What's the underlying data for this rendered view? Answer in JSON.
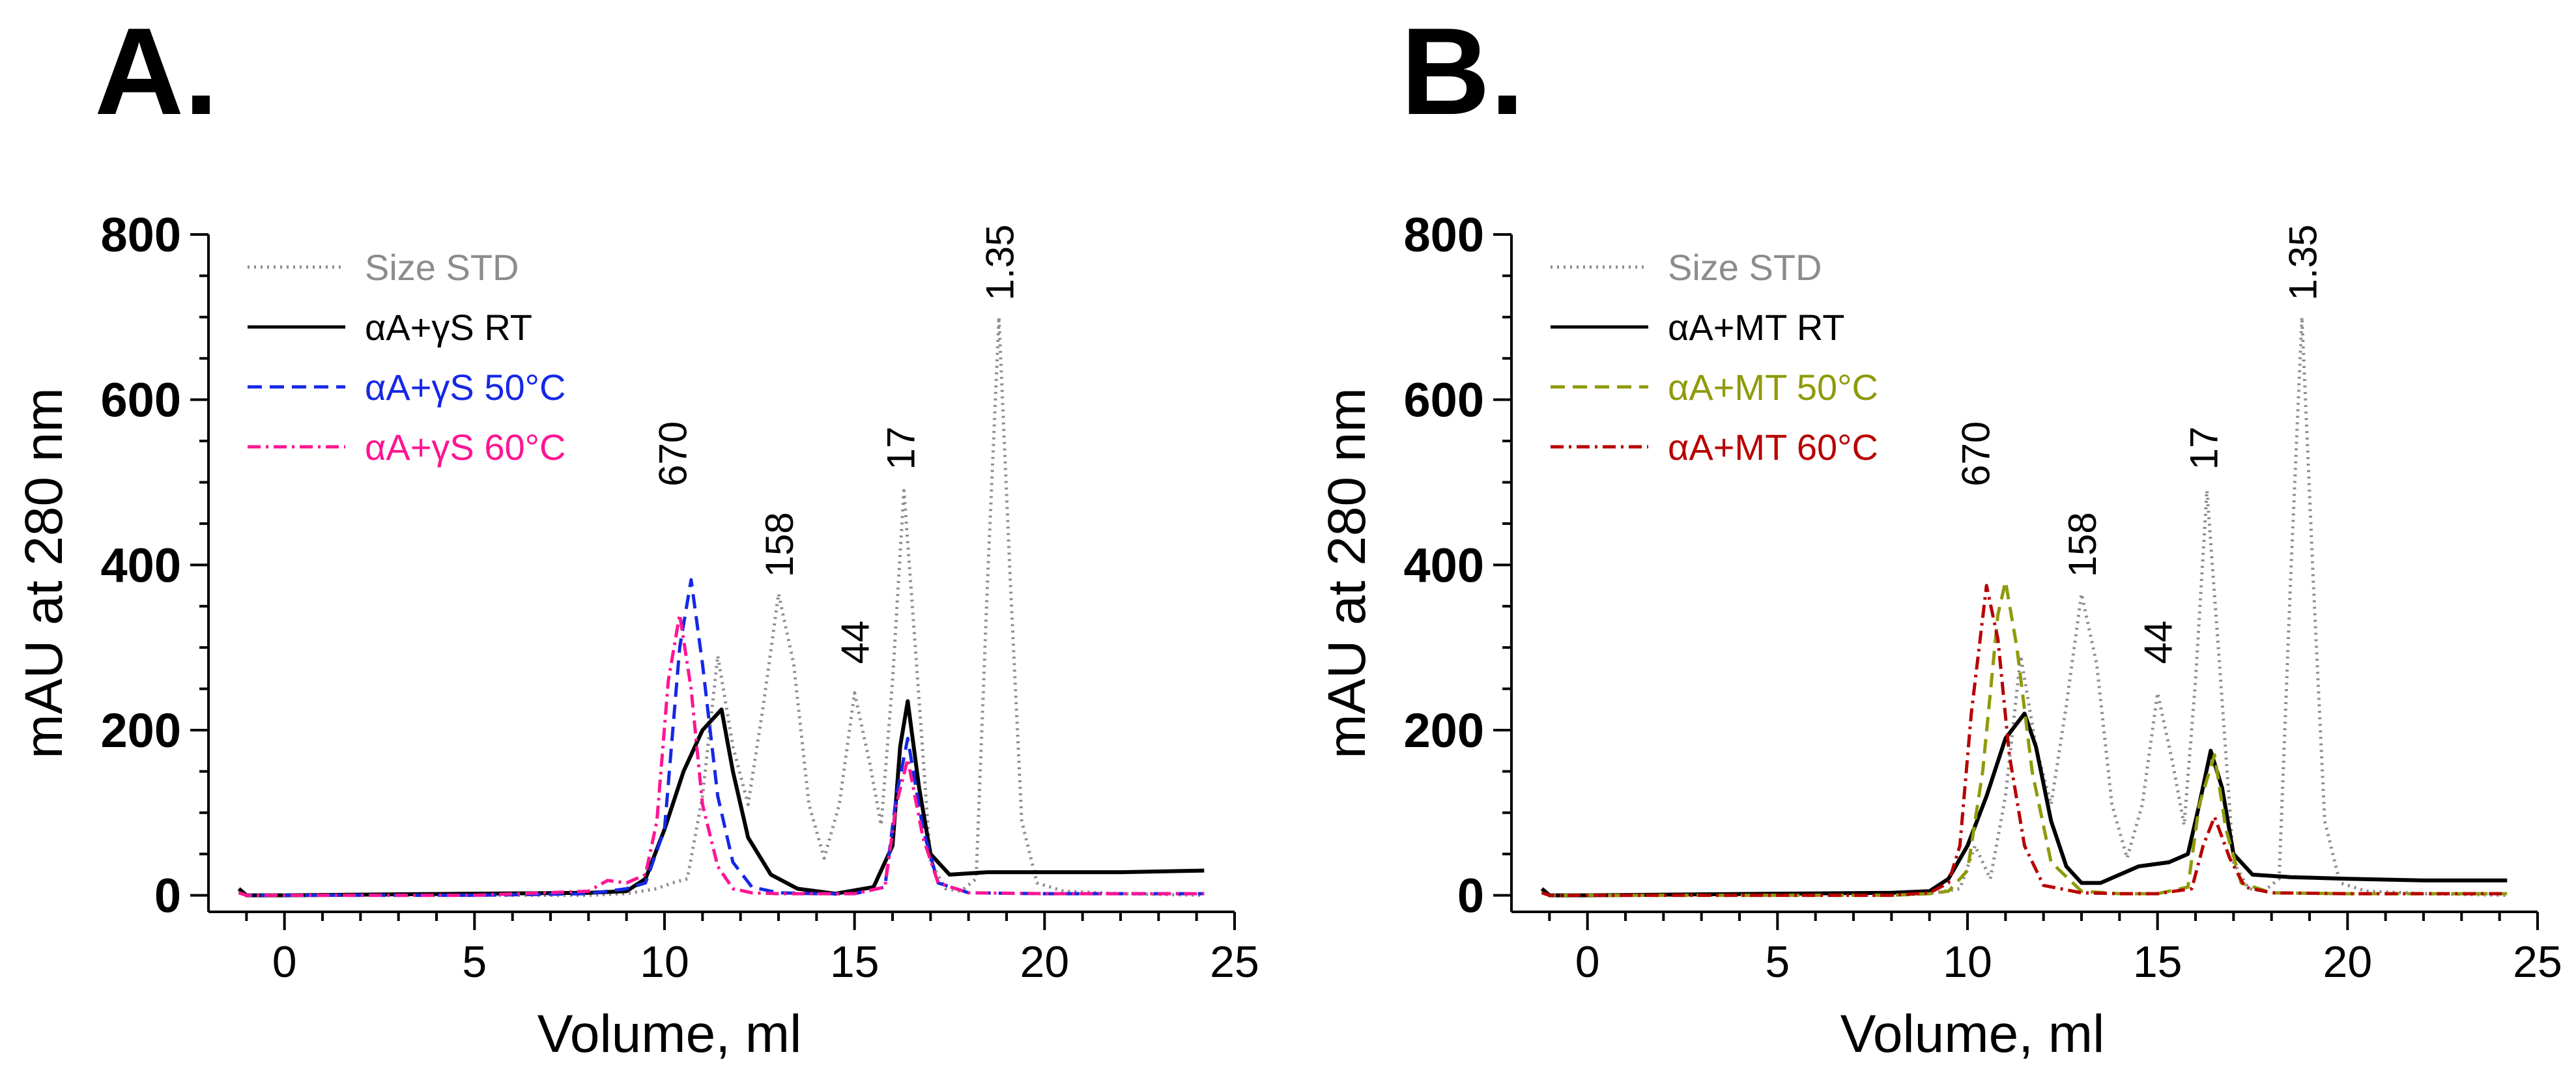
{
  "chart_data": [
    {
      "panel_label": "A.",
      "type": "line",
      "title": "",
      "xlabel": "Volume, ml",
      "ylabel": "mAU at 280 nm",
      "xlim": [
        -2,
        25
      ],
      "ylim": [
        -20,
        800
      ],
      "xticks": [
        0,
        5,
        10,
        15,
        20,
        25
      ],
      "xtick_labels": [
        "0",
        "5",
        "10",
        "15",
        "20",
        "25"
      ],
      "yticks": [
        0,
        200,
        400,
        600,
        800
      ],
      "ytick_labels": [
        "0",
        "200",
        "400",
        "600",
        "800"
      ],
      "legend_position": "top-left",
      "annotations": [
        {
          "text": "670",
          "x": 10.2,
          "y": 495
        },
        {
          "text": "158",
          "x": 13.0,
          "y": 385
        },
        {
          "text": "44",
          "x": 15.0,
          "y": 280
        },
        {
          "text": "17",
          "x": 16.2,
          "y": 515
        },
        {
          "text": "1.35",
          "x": 18.8,
          "y": 720
        }
      ],
      "series": [
        {
          "name": "Size STD",
          "color": "#8c8c8c",
          "dash": "dotted",
          "x": [
            -1.2,
            -1.0,
            0,
            5,
            8,
            9,
            9.8,
            10.2,
            10.6,
            11.0,
            11.4,
            11.8,
            12.2,
            12.6,
            13.0,
            13.4,
            13.8,
            14.2,
            14.6,
            15.0,
            15.4,
            15.7,
            16.0,
            16.3,
            16.6,
            17.0,
            17.4,
            17.8,
            18.2,
            18.5,
            18.8,
            19.1,
            19.4,
            19.8,
            20.5,
            22,
            24.2
          ],
          "y": [
            5,
            0,
            0,
            0,
            0,
            2,
            8,
            15,
            20,
            120,
            290,
            180,
            110,
            230,
            365,
            280,
            110,
            45,
            110,
            245,
            160,
            85,
            260,
            490,
            300,
            40,
            8,
            5,
            20,
            380,
            700,
            380,
            90,
            15,
            5,
            2,
            0
          ]
        },
        {
          "name": "αA+γS RT",
          "color": "#000000",
          "dash": "solid",
          "x": [
            -1.2,
            -1.0,
            0,
            5,
            8,
            9,
            9.5,
            10.0,
            10.5,
            11.0,
            11.5,
            11.8,
            12.2,
            12.8,
            13.5,
            14.5,
            15.5,
            16.0,
            16.2,
            16.4,
            16.7,
            17.0,
            17.5,
            18.5,
            20,
            22,
            24.2
          ],
          "y": [
            8,
            0,
            0,
            2,
            3,
            5,
            20,
            80,
            150,
            200,
            225,
            150,
            70,
            25,
            8,
            2,
            10,
            60,
            180,
            235,
            130,
            50,
            25,
            28,
            28,
            28,
            30
          ]
        },
        {
          "name": "αA+γS 50°C",
          "color": "#1528e6",
          "dash": "dashed",
          "x": [
            -1.2,
            -1.0,
            0,
            5,
            8,
            8.5,
            9.0,
            9.5,
            10.0,
            10.4,
            10.7,
            11.0,
            11.4,
            11.8,
            12.3,
            13,
            14,
            15,
            15.8,
            16.1,
            16.4,
            16.8,
            17.2,
            18,
            20,
            24.2
          ],
          "y": [
            3,
            0,
            0,
            0,
            2,
            5,
            8,
            15,
            80,
            300,
            382,
            280,
            120,
            40,
            10,
            3,
            2,
            2,
            10,
            120,
            190,
            80,
            15,
            3,
            2,
            2
          ]
        },
        {
          "name": "αA+γS 60°C",
          "color": "#ff1493",
          "dash": "dashdot",
          "x": [
            -1.2,
            -1.0,
            0,
            5,
            8,
            8.5,
            9.0,
            9.5,
            9.8,
            10.1,
            10.4,
            10.7,
            11.0,
            11.4,
            11.8,
            12.3,
            13,
            14,
            15,
            15.8,
            16.1,
            16.4,
            16.8,
            17.2,
            18,
            20,
            24.2
          ],
          "y": [
            3,
            0,
            0,
            0,
            5,
            18,
            15,
            25,
            90,
            260,
            340,
            250,
            110,
            35,
            8,
            3,
            2,
            2,
            2,
            10,
            110,
            165,
            70,
            15,
            3,
            2,
            2
          ]
        }
      ]
    },
    {
      "panel_label": "B.",
      "type": "line",
      "title": "",
      "xlabel": "Volume, ml",
      "ylabel": "mAU at 280 nm",
      "xlim": [
        -2,
        25
      ],
      "ylim": [
        -20,
        800
      ],
      "xticks": [
        0,
        5,
        10,
        15,
        20,
        25
      ],
      "xtick_labels": [
        "0",
        "5",
        "10",
        "15",
        "20",
        "25"
      ],
      "yticks": [
        0,
        200,
        400,
        600,
        800
      ],
      "ytick_labels": [
        "0",
        "200",
        "400",
        "600",
        "800"
      ],
      "legend_position": "top-left",
      "annotations": [
        {
          "text": "670",
          "x": 10.2,
          "y": 495
        },
        {
          "text": "158",
          "x": 13.0,
          "y": 385
        },
        {
          "text": "44",
          "x": 15.0,
          "y": 280
        },
        {
          "text": "17",
          "x": 16.2,
          "y": 515
        },
        {
          "text": "1.35",
          "x": 18.8,
          "y": 720
        }
      ],
      "series": [
        {
          "name": "Size STD",
          "color": "#8c8c8c",
          "dash": "dotted",
          "x": [
            -1.2,
            -1.0,
            0,
            5,
            8,
            9,
            9.8,
            10.2,
            10.6,
            11.0,
            11.4,
            11.8,
            12.2,
            12.6,
            13.0,
            13.4,
            13.8,
            14.2,
            14.6,
            15.0,
            15.4,
            15.7,
            16.0,
            16.3,
            16.6,
            17.0,
            17.4,
            17.8,
            18.2,
            18.5,
            18.8,
            19.1,
            19.4,
            19.8,
            20.5,
            22,
            24.2
          ],
          "y": [
            5,
            0,
            0,
            0,
            0,
            2,
            8,
            60,
            20,
            120,
            290,
            180,
            110,
            230,
            365,
            280,
            110,
            45,
            110,
            245,
            160,
            85,
            260,
            490,
            300,
            40,
            8,
            5,
            20,
            380,
            700,
            380,
            90,
            15,
            5,
            2,
            0
          ]
        },
        {
          "name": "αA+MT RT",
          "color": "#000000",
          "dash": "solid",
          "x": [
            -1.2,
            -1.0,
            0,
            5,
            8,
            9,
            9.5,
            10.0,
            10.5,
            11.0,
            11.5,
            11.8,
            12.2,
            12.6,
            13.0,
            13.5,
            14.5,
            15.3,
            15.8,
            16.1,
            16.4,
            16.7,
            17.0,
            17.5,
            18.5,
            20,
            22,
            24.2
          ],
          "y": [
            8,
            0,
            0,
            2,
            3,
            5,
            20,
            60,
            120,
            190,
            220,
            180,
            90,
            35,
            15,
            15,
            35,
            40,
            50,
            110,
            175,
            130,
            50,
            25,
            22,
            20,
            18,
            18
          ]
        },
        {
          "name": "αA+MT 50°C",
          "color": "#8f9a0a",
          "dash": "dashed",
          "x": [
            -1.2,
            -1.0,
            0,
            5,
            8,
            9,
            9.5,
            10.0,
            10.4,
            10.8,
            11.0,
            11.3,
            11.7,
            12.2,
            13,
            14,
            15,
            15.8,
            16.1,
            16.5,
            16.8,
            17.2,
            18,
            20,
            24.2
          ],
          "y": [
            3,
            0,
            0,
            0,
            0,
            2,
            5,
            30,
            150,
            340,
            380,
            300,
            150,
            40,
            5,
            2,
            2,
            10,
            110,
            170,
            80,
            15,
            3,
            2,
            2
          ]
        },
        {
          "name": "αA+MT 60°C",
          "color": "#b80000",
          "dash": "dashdot",
          "x": [
            -1.2,
            -1.0,
            0,
            5,
            8,
            9,
            9.5,
            9.8,
            10.1,
            10.5,
            10.8,
            11.1,
            11.5,
            12.0,
            13,
            14,
            15,
            15.9,
            16.2,
            16.5,
            16.9,
            17.3,
            18,
            20,
            24.2
          ],
          "y": [
            3,
            0,
            0,
            0,
            0,
            3,
            15,
            60,
            220,
            375,
            310,
            170,
            60,
            12,
            3,
            2,
            2,
            8,
            60,
            95,
            45,
            10,
            3,
            2,
            2
          ]
        }
      ]
    }
  ]
}
